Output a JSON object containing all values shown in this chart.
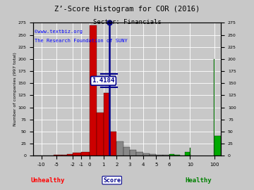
{
  "title": "Z’-Score Histogram for COR (2016)",
  "subtitle": "Sector: Financials",
  "watermark1": "©www.textbiz.org",
  "watermark2": "The Research Foundation of SUNY",
  "score_value": 1.4184,
  "score_label": "1.4184",
  "unhealthy_label": "Unhealthy",
  "healthy_label": "Healthy",
  "background_color": "#c8c8c8",
  "grid_color": "#ffffff",
  "ylabel": "Number of companies (997 total)",
  "ylim_top": 275,
  "yticks": [
    0,
    25,
    50,
    75,
    100,
    125,
    150,
    175,
    200,
    225,
    250,
    275
  ],
  "xtick_labels": [
    "-10",
    "-5",
    "-2",
    "-1",
    "0",
    "1",
    "2",
    "3",
    "4",
    "5",
    "6",
    "10",
    "100"
  ],
  "xtick_scores": [
    -10,
    -5,
    -2,
    -1,
    0,
    1,
    2,
    3,
    4,
    5,
    6,
    10,
    100
  ],
  "bars": [
    [
      -12,
      -11,
      0.5,
      "red"
    ],
    [
      -11,
      -10,
      1.0,
      "red"
    ],
    [
      -10,
      -9,
      0.5,
      "red"
    ],
    [
      -9,
      -8,
      0.3,
      "red"
    ],
    [
      -8,
      -7,
      0.5,
      "red"
    ],
    [
      -7,
      -6,
      0.5,
      "red"
    ],
    [
      -6,
      -5,
      1.5,
      "red"
    ],
    [
      -5,
      -4,
      2.0,
      "red"
    ],
    [
      -4,
      -3,
      2.0,
      "red"
    ],
    [
      -3,
      -2,
      3.5,
      "red"
    ],
    [
      -2,
      -1,
      6.0,
      "red"
    ],
    [
      -1,
      0,
      8.0,
      "red"
    ],
    [
      0,
      0.5,
      270.0,
      "red"
    ],
    [
      0.5,
      1.0,
      90.0,
      "red"
    ],
    [
      1.0,
      1.5,
      130.0,
      "red"
    ],
    [
      1.5,
      2.0,
      50.0,
      "red"
    ],
    [
      2.0,
      2.5,
      30.0,
      "gray"
    ],
    [
      2.5,
      3.0,
      18.0,
      "gray"
    ],
    [
      3.0,
      3.5,
      12.0,
      "gray"
    ],
    [
      3.5,
      4.0,
      8.0,
      "gray"
    ],
    [
      4.0,
      4.5,
      5.0,
      "gray"
    ],
    [
      4.5,
      5.0,
      3.0,
      "gray"
    ],
    [
      5.0,
      5.5,
      2.0,
      "gray"
    ],
    [
      5.5,
      6.0,
      1.5,
      "gray"
    ],
    [
      6.0,
      7.0,
      3.0,
      "green"
    ],
    [
      7.0,
      8.0,
      1.5,
      "green"
    ],
    [
      8.0,
      9.0,
      1.0,
      "green"
    ],
    [
      9.0,
      10.0,
      8.0,
      "green"
    ],
    [
      10.0,
      11.0,
      16.0,
      "green"
    ],
    [
      11.0,
      12.0,
      3.0,
      "green"
    ],
    [
      98.0,
      99.0,
      1.0,
      "green"
    ],
    [
      99.0,
      100.0,
      200.0,
      "green"
    ],
    [
      100.0,
      101.0,
      42.0,
      "green"
    ]
  ],
  "tick_xpos": [
    -10,
    -5,
    -2,
    -1,
    0,
    1,
    2,
    3,
    4,
    5,
    6,
    10,
    100
  ],
  "xmap_scores": [
    -12,
    -10,
    -5,
    -2,
    -1,
    0,
    1,
    2,
    3,
    4,
    5,
    6,
    10,
    100,
    101
  ],
  "xmap_pos": [
    0,
    0.045,
    0.125,
    0.21,
    0.255,
    0.3,
    0.375,
    0.445,
    0.515,
    0.585,
    0.655,
    0.725,
    0.835,
    0.965,
    1.0
  ]
}
